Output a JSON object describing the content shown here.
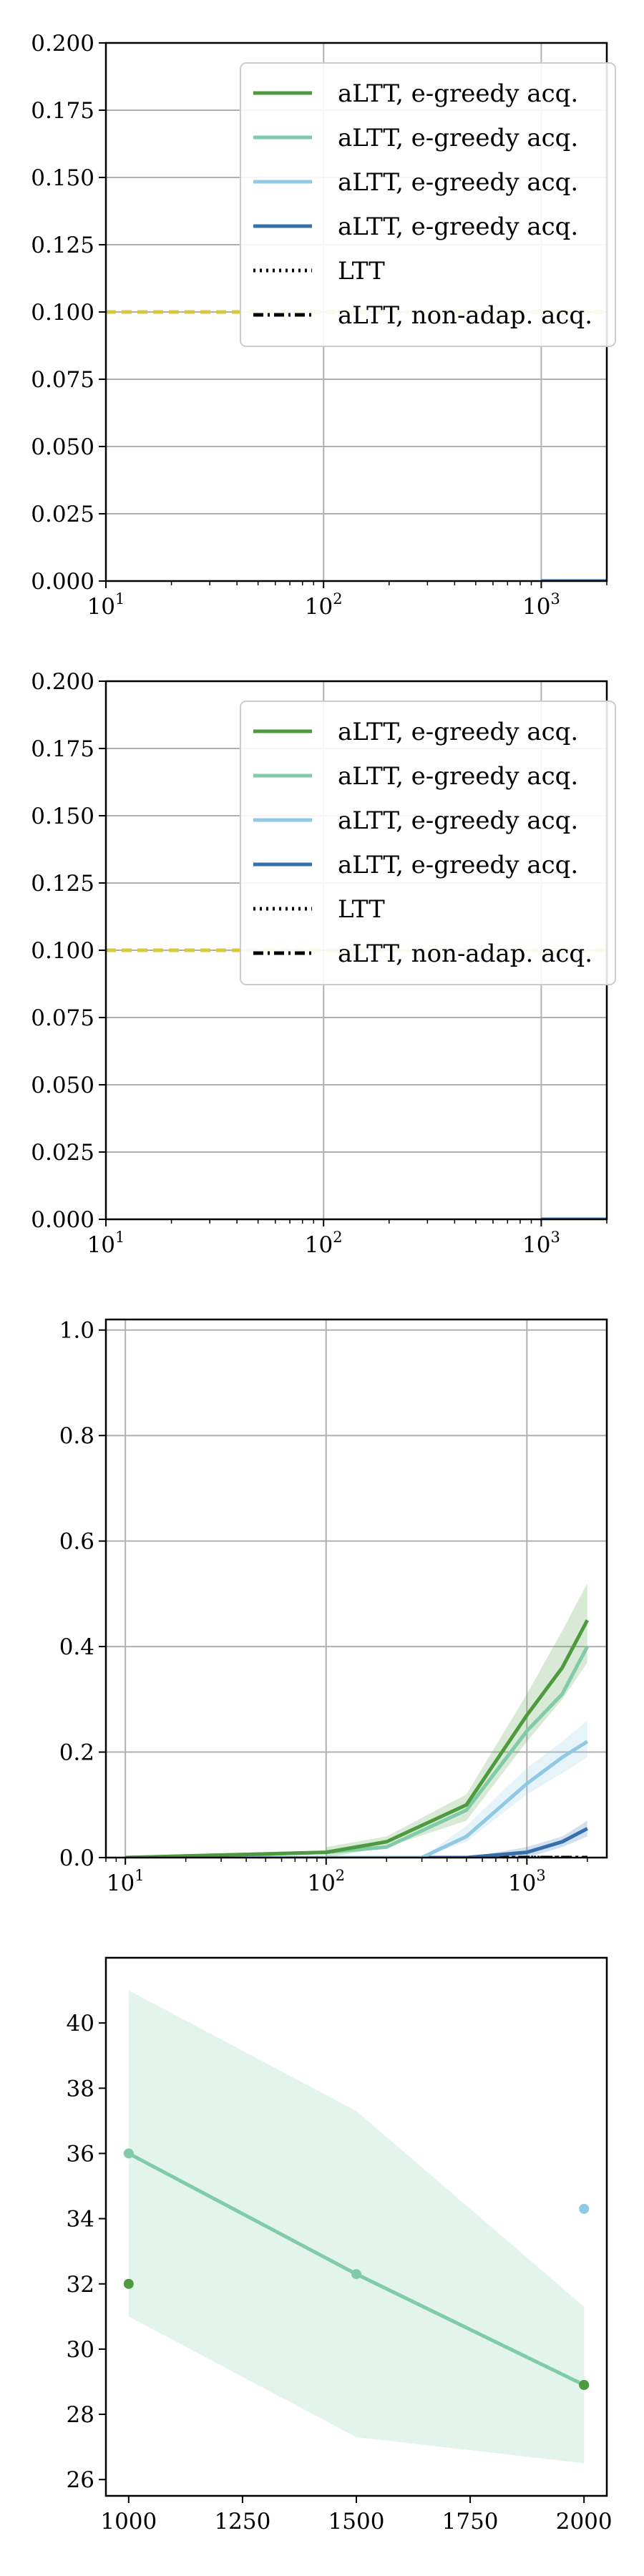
{
  "colors": {
    "green": "#4d9a3f",
    "teal": "#80cba9",
    "lightblue": "#8fc9e4",
    "darkblue": "#3670ac",
    "black": "#000000",
    "yellow": "#d8c93a",
    "grid": "#b0b0b0"
  },
  "chart_data": [
    {
      "type": "line",
      "xscale": "log",
      "xlim": [
        10,
        2000
      ],
      "ylim": [
        0,
        0.2
      ],
      "xticks": [
        {
          "base": "10",
          "exp": "1",
          "value": 10
        },
        {
          "base": "10",
          "exp": "2",
          "value": 100
        },
        {
          "base": "10",
          "exp": "3",
          "value": 1000
        }
      ],
      "yticks": [
        "0.000",
        "0.025",
        "0.050",
        "0.075",
        "0.100",
        "0.125",
        "0.150",
        "0.175",
        "0.200"
      ],
      "grid": true,
      "legend_position": "top-right",
      "legend": [
        {
          "label": "aLTT, e-greedy acq.",
          "color": "green",
          "style": "solid"
        },
        {
          "label": "aLTT, e-greedy acq.",
          "color": "teal",
          "style": "solid"
        },
        {
          "label": "aLTT, e-greedy acq.",
          "color": "lightblue",
          "style": "solid"
        },
        {
          "label": "aLTT, e-greedy acq.",
          "color": "darkblue",
          "style": "solid"
        },
        {
          "label": "LTT",
          "color": "black",
          "style": "dotted"
        },
        {
          "label": "aLTT, non-adap. acq.",
          "color": "black",
          "style": "dashdot"
        }
      ],
      "lines": [
        {
          "color": "yellow",
          "style": "dashed",
          "x": [
            10,
            2000
          ],
          "y": [
            0.1,
            0.1
          ]
        },
        {
          "color": "darkblue",
          "style": "solid",
          "x": [
            1000,
            2000
          ],
          "y": [
            0.0,
            0.0
          ]
        }
      ],
      "bands": []
    },
    {
      "type": "line",
      "xscale": "log",
      "xlim": [
        10,
        2000
      ],
      "ylim": [
        0,
        0.2
      ],
      "xticks": [
        {
          "base": "10",
          "exp": "1",
          "value": 10
        },
        {
          "base": "10",
          "exp": "2",
          "value": 100
        },
        {
          "base": "10",
          "exp": "3",
          "value": 1000
        }
      ],
      "yticks": [
        "0.000",
        "0.025",
        "0.050",
        "0.075",
        "0.100",
        "0.125",
        "0.150",
        "0.175",
        "0.200"
      ],
      "grid": true,
      "legend_position": "top-right",
      "legend": [
        {
          "label": "aLTT, e-greedy acq.",
          "color": "green",
          "style": "solid"
        },
        {
          "label": "aLTT, e-greedy acq.",
          "color": "teal",
          "style": "solid"
        },
        {
          "label": "aLTT, e-greedy acq.",
          "color": "lightblue",
          "style": "solid"
        },
        {
          "label": "aLTT, e-greedy acq.",
          "color": "darkblue",
          "style": "solid"
        },
        {
          "label": "LTT",
          "color": "black",
          "style": "dotted"
        },
        {
          "label": "aLTT, non-adap. acq.",
          "color": "black",
          "style": "dashdot"
        }
      ],
      "lines": [
        {
          "color": "yellow",
          "style": "dashed",
          "x": [
            10,
            2000
          ],
          "y": [
            0.1,
            0.1
          ]
        },
        {
          "color": "darkblue",
          "style": "solid",
          "x": [
            1000,
            2000
          ],
          "y": [
            0.0,
            0.0
          ]
        }
      ],
      "bands": []
    },
    {
      "type": "line",
      "xscale": "log",
      "xlim": [
        8,
        2500
      ],
      "ylim": [
        0,
        1.02
      ],
      "xticks": [
        {
          "base": "10",
          "exp": "1",
          "value": 10
        },
        {
          "base": "10",
          "exp": "2",
          "value": 100
        },
        {
          "base": "10",
          "exp": "3",
          "value": 1000
        }
      ],
      "yticks": [
        "0.0",
        "0.2",
        "0.4",
        "0.6",
        "0.8",
        "1.0"
      ],
      "grid": true,
      "legend": [],
      "lines": [
        {
          "color": "black",
          "style": "dotted",
          "x": [
            10,
            2000
          ],
          "y": [
            0.0,
            0.0
          ]
        },
        {
          "color": "black",
          "style": "dashdot",
          "x": [
            10,
            2000
          ],
          "y": [
            0.0,
            0.0
          ]
        },
        {
          "color": "darkblue",
          "style": "solid",
          "x": [
            10,
            100,
            200,
            500,
            1000,
            1500,
            2000
          ],
          "y": [
            0.0,
            0.0,
            0.0,
            0.0,
            0.01,
            0.03,
            0.055
          ]
        },
        {
          "color": "lightblue",
          "style": "solid",
          "x": [
            10,
            100,
            200,
            300,
            500,
            1000,
            1500,
            2000
          ],
          "y": [
            0.0,
            0.0,
            0.0,
            0.0,
            0.04,
            0.14,
            0.19,
            0.22
          ]
        },
        {
          "color": "teal",
          "style": "solid",
          "x": [
            10,
            100,
            200,
            500,
            1000,
            1500,
            2000
          ],
          "y": [
            0.0,
            0.01,
            0.02,
            0.09,
            0.24,
            0.31,
            0.4
          ]
        },
        {
          "color": "green",
          "style": "solid",
          "x": [
            10,
            100,
            200,
            500,
            1000,
            1500,
            2000
          ],
          "y": [
            0.0,
            0.01,
            0.03,
            0.1,
            0.27,
            0.36,
            0.45
          ]
        }
      ],
      "bands": [
        {
          "color": "green",
          "x": [
            100,
            200,
            500,
            1000,
            1500,
            2000
          ],
          "lower": [
            0.0,
            0.02,
            0.07,
            0.22,
            0.3,
            0.37
          ],
          "upper": [
            0.02,
            0.04,
            0.12,
            0.31,
            0.43,
            0.52
          ]
        },
        {
          "color": "lightblue",
          "x": [
            300,
            500,
            1000,
            1500,
            2000
          ],
          "lower": [
            0.0,
            0.03,
            0.12,
            0.16,
            0.19
          ],
          "upper": [
            0.0,
            0.06,
            0.17,
            0.22,
            0.26
          ]
        },
        {
          "color": "darkblue",
          "x": [
            500,
            1000,
            1500,
            2000
          ],
          "lower": [
            0.0,
            0.0,
            0.02,
            0.04
          ],
          "upper": [
            0.0,
            0.02,
            0.04,
            0.07
          ]
        }
      ]
    },
    {
      "type": "line",
      "xscale": "linear",
      "xlim": [
        950,
        2050
      ],
      "ylim": [
        25.5,
        42
      ],
      "xticks": [
        {
          "label": "1000",
          "value": 1000
        },
        {
          "label": "1250",
          "value": 1250
        },
        {
          "label": "1500",
          "value": 1500
        },
        {
          "label": "1750",
          "value": 1750
        },
        {
          "label": "2000",
          "value": 2000
        }
      ],
      "yticks": [
        "26",
        "28",
        "30",
        "32",
        "34",
        "36",
        "38",
        "40"
      ],
      "grid": false,
      "legend": [],
      "lines": [
        {
          "color": "teal",
          "style": "solid",
          "x": [
            1000,
            1500,
            2000
          ],
          "y": [
            36.0,
            32.3,
            28.9
          ],
          "markers": true
        }
      ],
      "bands": [
        {
          "color": "teal",
          "x": [
            1000,
            1500,
            2000
          ],
          "lower": [
            31.0,
            27.3,
            26.5
          ],
          "upper": [
            41.0,
            37.3,
            31.3
          ]
        }
      ],
      "points": [
        {
          "color": "green",
          "x": 1000,
          "y": 32.0
        },
        {
          "color": "green",
          "x": 2000,
          "y": 28.9
        },
        {
          "color": "lightblue",
          "x": 2000,
          "y": 34.3
        }
      ]
    }
  ]
}
